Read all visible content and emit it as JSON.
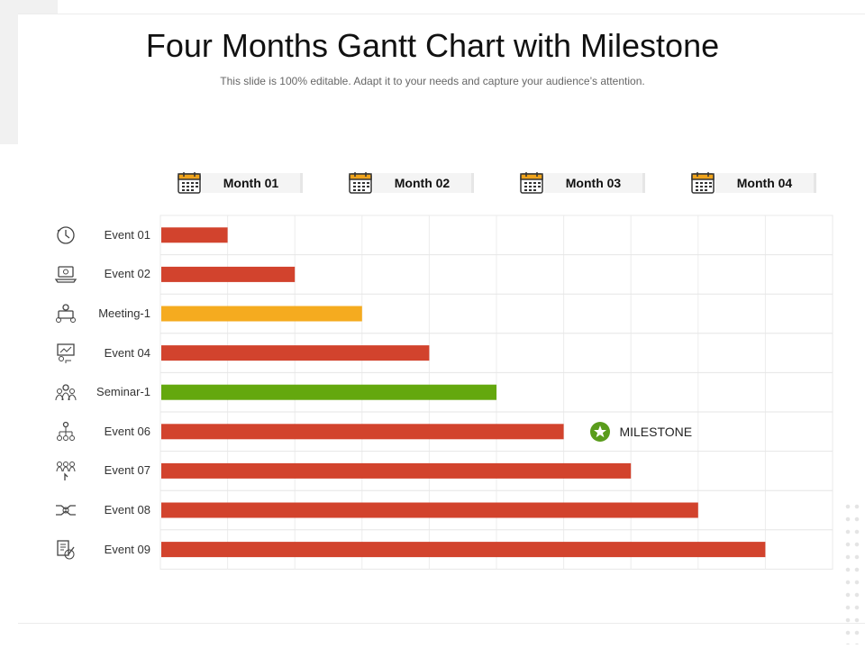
{
  "title": "Four Months Gantt Chart with Milestone",
  "subtitle": "This slide is 100% editable. Adapt it to your needs and capture your audience’s attention.",
  "colors": {
    "red": "#d2432d",
    "yellow": "#f5ab1f",
    "green": "#64a80e",
    "milestone": "#5a9c1c",
    "calendar": "#f0a41c"
  },
  "months": [
    "Month 01",
    "Month 02",
    "Month 03",
    "Month 04"
  ],
  "milestone": {
    "label": "MILESTONE",
    "row": 5,
    "position": 6.4,
    "icon": "star-icon"
  },
  "chart_data": {
    "type": "bar",
    "orientation": "horizontal-gantt",
    "categories": [
      "Event 01",
      "Event 02",
      "Meeting-1",
      "Event 04",
      "Seminar-1",
      "Event 06",
      "Event 07",
      "Event 08",
      "Event 09"
    ],
    "values": [
      1,
      2,
      3,
      4,
      5,
      6,
      7,
      8,
      9
    ],
    "bar_colors": [
      "red",
      "red",
      "yellow",
      "red",
      "green",
      "red",
      "red",
      "red",
      "red"
    ],
    "icons": [
      "clock-icon",
      "laptop-icon",
      "meeting-icon",
      "presentation-icon",
      "group-icon",
      "hierarchy-icon",
      "team-icon",
      "handshake-icon",
      "document-icon"
    ],
    "xlim": [
      0,
      10
    ],
    "grid": true
  }
}
